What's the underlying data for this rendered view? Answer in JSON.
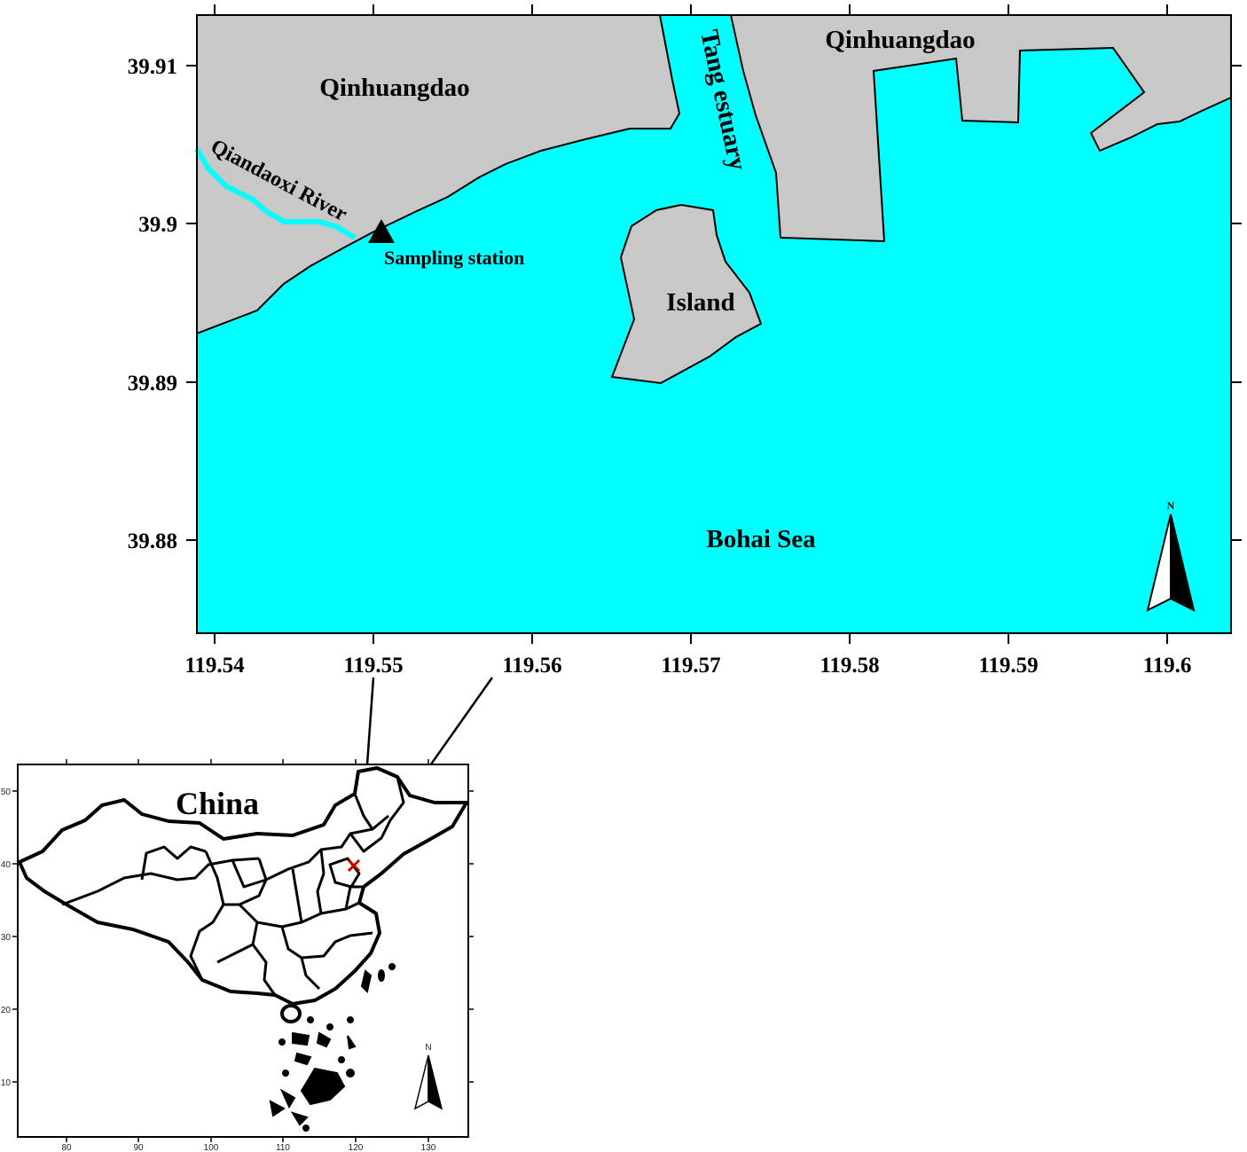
{
  "main_map": {
    "lat_ticks": [
      "39.91",
      "39.9",
      "39.89",
      "39.88"
    ],
    "lon_ticks": [
      "119.54",
      "119.55",
      "119.56",
      "119.57",
      "119.58",
      "119.59",
      "119.6"
    ],
    "labels": {
      "qinhuangdao_west": "Qinhuangdao",
      "qinhuangdao_east": "Qinhuangdao",
      "river": "Qiandaoxi River",
      "estuary": "Tang estuary",
      "station": "Sampling station",
      "island": "Island",
      "sea": "Bohai Sea"
    },
    "north_label": "N",
    "colors": {
      "land": "#c8c8c8",
      "water": "#00ffff",
      "outline": "#000000"
    }
  },
  "inset_map": {
    "title": "China",
    "y_ticks": [
      "50",
      "40",
      "30",
      "20",
      "10"
    ],
    "x_ticks": [
      "80",
      "90",
      "100",
      "110",
      "120",
      "130"
    ],
    "north_label": "N",
    "marker_color": "#cc0000"
  }
}
